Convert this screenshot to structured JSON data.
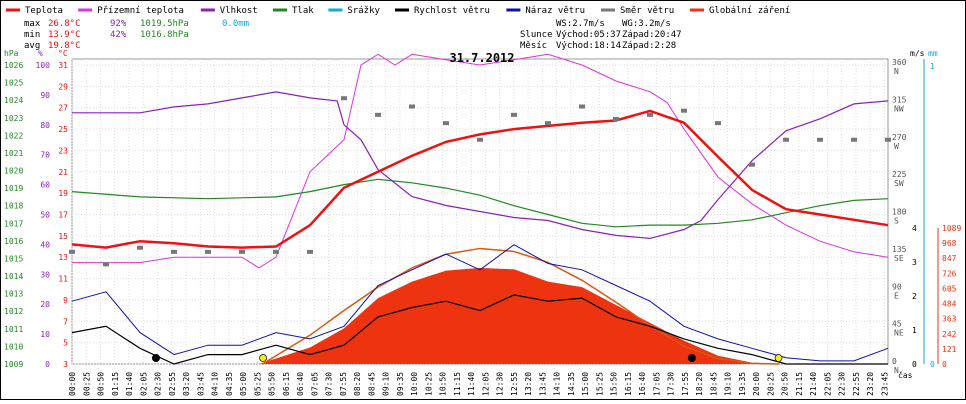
{
  "legend": [
    {
      "label": "Teplota",
      "color": "#ee1111"
    },
    {
      "label": "Přízemní teplota",
      "color": "#dd33dd"
    },
    {
      "label": "Vlhkost",
      "color": "#8822bb"
    },
    {
      "label": "Tlak",
      "color": "#228822"
    },
    {
      "label": "Srážky",
      "color": "#11aadd"
    },
    {
      "label": "Rychlost větru",
      "color": "#000000"
    },
    {
      "label": "Náraz větru",
      "color": "#1111aa"
    },
    {
      "label": "Směr větru",
      "color": "#777777"
    },
    {
      "label": "Globální záření",
      "color": "#ee3311"
    }
  ],
  "stats": {
    "max_label": "max",
    "max_temp": "26.8°C",
    "max_hum": "92%",
    "max_press": "1019.5hPa",
    "max_rain": "0.0mm",
    "min_label": "min",
    "min_temp": "13.9°C",
    "min_hum": "42%",
    "min_press": "1016.8hPa",
    "avg_label": "avg",
    "avg_temp": "19.8°C"
  },
  "wind_stats": {
    "ws": "WS:2.7m/s",
    "wg": "WG:3.2m/s"
  },
  "sun": {
    "label": "Slunce",
    "rise": "Východ:05:37",
    "set": "Západ:20:47"
  },
  "moon": {
    "label": "Měsíc",
    "rise": "Východ:18:14",
    "set": "Západ:2:28"
  },
  "date": "31.7.2012",
  "axis_units": {
    "press": "hPa",
    "hum": "%",
    "temp": "°C",
    "wind": "m/s",
    "rain": "mm",
    "time": "čas"
  },
  "chart_data": {
    "type": "line",
    "title": "31.7.2012",
    "x_ticks": [
      "00:00",
      "00:25",
      "00:50",
      "01:15",
      "01:40",
      "02:05",
      "02:30",
      "02:55",
      "03:20",
      "03:45",
      "04:10",
      "04:35",
      "05:00",
      "05:25",
      "05:50",
      "06:15",
      "06:40",
      "07:05",
      "07:30",
      "07:55",
      "08:20",
      "08:45",
      "09:10",
      "09:35",
      "10:00",
      "10:25",
      "10:50",
      "11:15",
      "11:40",
      "12:05",
      "12:30",
      "12:55",
      "13:20",
      "13:45",
      "14:10",
      "14:35",
      "15:00",
      "15:25",
      "15:50",
      "16:15",
      "16:40",
      "17:05",
      "17:30",
      "17:55",
      "18:20",
      "18:45",
      "19:10",
      "19:35",
      "20:00",
      "20:25",
      "20:50",
      "21:15",
      "21:40",
      "22:05",
      "22:30",
      "22:55",
      "23:20",
      "23:45"
    ],
    "pressure_ticks": [
      "1026",
      "1025",
      "1024",
      "1023",
      "1022",
      "1021",
      "1020",
      "1019",
      "1018",
      "1017",
      "1016",
      "1015",
      "1014",
      "1013",
      "1012",
      "1011",
      "1010",
      "1009"
    ],
    "humidity_ticks": [
      "100",
      "90",
      "80",
      "70",
      "60",
      "50",
      "40",
      "30",
      "20",
      "10",
      "0"
    ],
    "temp_ticks": [
      "31",
      "29",
      "27",
      "25",
      "23",
      "21",
      "19",
      "17",
      "15",
      "13",
      "11",
      "9",
      "7",
      "5",
      "3"
    ],
    "direction_ticks": [
      {
        "deg": "360",
        "dir": "N"
      },
      {
        "deg": "315",
        "dir": "NW"
      },
      {
        "deg": "270",
        "dir": "W"
      },
      {
        "deg": "225",
        "dir": "SW"
      },
      {
        "deg": "180",
        "dir": "S"
      },
      {
        "deg": "135",
        "dir": "SE"
      },
      {
        "deg": "90",
        "dir": "E"
      },
      {
        "deg": "45",
        "dir": "NE"
      },
      {
        "deg": "0",
        "dir": "N"
      }
    ],
    "wind_ticks": [
      "4",
      "3",
      "2",
      "1",
      "0"
    ],
    "rain_ticks": [
      "1",
      "0"
    ],
    "radiation_ticks": [
      "1089",
      "968",
      "847",
      "726",
      "605",
      "484",
      "363",
      "242",
      "121",
      "0"
    ],
    "temperature": {
      "name": "Teplota",
      "t": [
        0,
        1,
        2,
        3,
        4,
        5,
        6,
        7,
        8,
        9,
        10,
        11,
        12,
        13,
        14,
        15,
        16,
        17,
        18,
        19,
        20,
        21,
        22,
        23,
        24
      ],
      "values": [
        14.2,
        13.9,
        14.5,
        14.3,
        14.0,
        13.9,
        14.0,
        16.0,
        19.5,
        21.0,
        22.5,
        23.8,
        24.5,
        25.0,
        25.3,
        25.6,
        25.8,
        26.7,
        25.6,
        22.4,
        19.3,
        17.5,
        17.0,
        16.5,
        16.0
      ]
    },
    "ground_temperature": {
      "name": "Přízemní teplota",
      "t": [
        0,
        1,
        2,
        3,
        4,
        5,
        5.5,
        6,
        7,
        7.5,
        8,
        8.5,
        9,
        9.5,
        10,
        11,
        12,
        13,
        14,
        15,
        16,
        17,
        17.5,
        18,
        19,
        20,
        21,
        22,
        23,
        24
      ],
      "values": [
        12.5,
        12.5,
        12.5,
        13.0,
        13.0,
        13.0,
        12.0,
        13.0,
        21.0,
        22.5,
        24.0,
        31.0,
        32.0,
        31.0,
        32.0,
        31.5,
        31.0,
        31.5,
        32.0,
        31.0,
        29.5,
        28.5,
        27.5,
        25.0,
        20.5,
        18.0,
        16.0,
        14.5,
        13.5,
        13.0
      ]
    },
    "humidity": {
      "name": "Vlhkost",
      "t": [
        0,
        1,
        2,
        3,
        4,
        5,
        6,
        7,
        7.8,
        8,
        8.5,
        9,
        10,
        11,
        12,
        13,
        14,
        15,
        16,
        17,
        18,
        18.5,
        19,
        20,
        21,
        22,
        23,
        24
      ],
      "values": [
        84,
        84,
        84,
        86,
        87,
        89,
        91,
        89,
        88,
        80,
        75,
        65,
        56,
        53,
        51,
        49,
        48,
        45,
        43,
        42,
        45,
        48,
        55,
        68,
        78,
        82,
        87,
        88
      ]
    },
    "pressure": {
      "name": "Tlak",
      "t": [
        0,
        2,
        4,
        6,
        7,
        8,
        9,
        10,
        11,
        12,
        13,
        14,
        15,
        16,
        17,
        18,
        19,
        20,
        21,
        22,
        23,
        24
      ],
      "values": [
        1018.8,
        1018.5,
        1018.4,
        1018.5,
        1018.8,
        1019.2,
        1019.5,
        1019.3,
        1019.0,
        1018.6,
        1018.0,
        1017.5,
        1017.0,
        1016.8,
        1016.9,
        1016.9,
        1017.0,
        1017.2,
        1017.6,
        1018.0,
        1018.3,
        1018.4
      ]
    },
    "wind_direction": {
      "name": "Směr větru",
      "t": [
        0,
        1,
        2,
        3,
        4,
        5,
        6,
        7,
        8,
        9,
        10,
        11,
        12,
        13,
        14,
        15,
        16,
        17,
        18,
        19,
        20,
        21,
        22,
        23,
        24
      ],
      "values": [
        135,
        120,
        140,
        135,
        135,
        135,
        135,
        135,
        320,
        300,
        310,
        290,
        270,
        300,
        290,
        310,
        295,
        300,
        305,
        290,
        240,
        270,
        270,
        270,
        270
      ]
    },
    "wind_speed": {
      "name": "Rychlost větru",
      "t": [
        0,
        1,
        2,
        3,
        4,
        5,
        6,
        7,
        8,
        9,
        10,
        11,
        12,
        13,
        14,
        15,
        16,
        17,
        18,
        19,
        20,
        21,
        22,
        23,
        24
      ],
      "values": [
        1.0,
        1.2,
        0.5,
        0.0,
        0.3,
        0.3,
        0.6,
        0.3,
        0.6,
        1.5,
        1.8,
        2.0,
        1.7,
        2.2,
        2.0,
        2.1,
        1.5,
        1.2,
        0.8,
        0.5,
        0.3,
        0.0,
        0.0,
        0.0,
        0.0
      ]
    },
    "wind_gust": {
      "name": "Náraz větru",
      "t": [
        0,
        1,
        2,
        3,
        4,
        5,
        6,
        7,
        8,
        9,
        10,
        11,
        12,
        13,
        14,
        15,
        16,
        17,
        18,
        19,
        20,
        21,
        22,
        23,
        24
      ],
      "values": [
        2.0,
        2.3,
        1.0,
        0.3,
        0.6,
        0.6,
        1.0,
        0.8,
        1.2,
        2.5,
        3.0,
        3.5,
        3.0,
        3.8,
        3.2,
        3.0,
        2.5,
        2.0,
        1.2,
        0.8,
        0.5,
        0.2,
        0.1,
        0.1,
        0.5
      ]
    },
    "radiation": {
      "name": "Globální záření",
      "t": [
        5.5,
        6,
        7,
        8,
        9,
        10,
        11,
        12,
        13,
        14,
        15,
        16,
        17,
        18,
        19,
        20,
        20.8
      ],
      "values": [
        0,
        40,
        120,
        260,
        480,
        600,
        680,
        700,
        690,
        600,
        560,
        430,
        300,
        170,
        60,
        10,
        0
      ]
    },
    "radiation_theoretical": {
      "t": [
        5.6,
        6,
        7,
        8,
        9,
        10,
        11,
        12,
        13,
        14,
        15,
        16,
        17,
        18,
        19,
        20,
        20.8
      ],
      "values": [
        0,
        60,
        210,
        390,
        560,
        700,
        800,
        842,
        820,
        740,
        610,
        450,
        280,
        130,
        40,
        5,
        0
      ]
    },
    "rain": {
      "name": "Srážky",
      "total": "0.0mm"
    }
  }
}
